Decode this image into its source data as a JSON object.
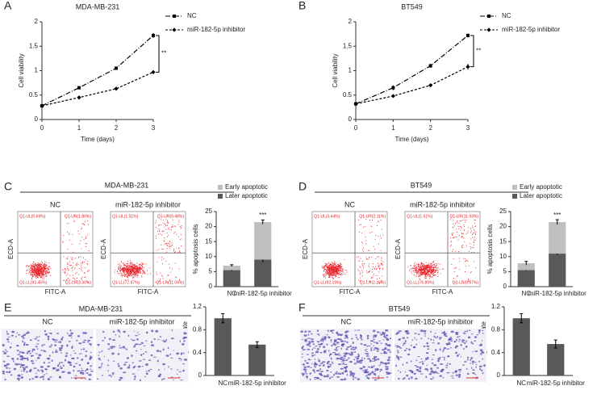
{
  "figure": {
    "panel_labels": [
      "A",
      "B",
      "C",
      "D",
      "E",
      "F"
    ],
    "flow": [
      {
        "title": "MDA-MB-231",
        "groups": [
          "NC",
          "miR-182-5p inhibitor"
        ],
        "x_label": "FITC-A",
        "y_label": "ECD-A",
        "quadrants": [
          [
            "Q1-UL(0.69%)",
            "Q1-UR(1.80%)",
            "Q1-LL(93.45%)",
            "Q1-LR(3.30%)"
          ],
          [
            "Q1-UL(1.51%)",
            "Q1-UR(9.48%)",
            "Q1-LL(77.97%)",
            "Q1-LR(11.04%)"
          ]
        ]
      },
      {
        "title": "BT549",
        "groups": [
          "NC",
          "miR-182-5p inhibitor"
        ],
        "x_label": "FITC-A",
        "y_label": "ECD-A",
        "quadrants": [
          [
            "Q1-UL(3.44%)",
            "Q1-UR(2.11%)",
            "Q1-LL(92.19%)",
            "Q1-LR(2.26%)"
          ],
          [
            "Q1-UL(1.61%)",
            "Q1-UR(11.93%)",
            "Q1-LL(76.89%)",
            "Q1-LR(9.57%)"
          ]
        ]
      }
    ],
    "migration": [
      {
        "title": "MDA-MB-231",
        "groups": [
          "NC",
          "miR-182-5p inhibitor"
        ]
      },
      {
        "title": "BT549",
        "groups": [
          "NC",
          "miR-182-5p inhibitor"
        ]
      }
    ]
  },
  "chart_data": [
    {
      "type": "line",
      "title": "MDA-MB-231",
      "x_label": "Time (days)",
      "y_label": "Cell viability",
      "x": [
        0,
        1,
        2,
        3
      ],
      "xlim": [
        0,
        3
      ],
      "xticks": [
        0,
        1,
        2,
        3
      ],
      "ylim": [
        0,
        2
      ],
      "yticks": [
        0,
        0.5,
        1,
        1.5,
        2
      ],
      "annotation": "**",
      "series": [
        {
          "name": "NC",
          "color": "#000000",
          "dash": "dashdot",
          "marker": "square",
          "values": [
            0.28,
            0.65,
            1.05,
            1.72
          ],
          "errors": [
            0.03,
            0.03,
            0.03,
            0.05
          ]
        },
        {
          "name": "miR-182-5p inhibitor",
          "color": "#000000",
          "dash": "dashed",
          "marker": "diamond",
          "values": [
            0.28,
            0.45,
            0.63,
            0.97
          ],
          "errors": [
            0.03,
            0.02,
            0.03,
            0.04
          ]
        }
      ]
    },
    {
      "type": "line",
      "title": "BT549",
      "x_label": "Time (days)",
      "y_label": "Cell viability",
      "x": [
        0,
        1,
        2,
        3
      ],
      "xlim": [
        0,
        3
      ],
      "xticks": [
        0,
        1,
        2,
        3
      ],
      "ylim": [
        0,
        2
      ],
      "yticks": [
        0,
        0.5,
        1,
        1.5,
        2
      ],
      "annotation": "**",
      "series": [
        {
          "name": "NC",
          "color": "#000000",
          "dash": "dashdot",
          "marker": "square",
          "values": [
            0.32,
            0.65,
            1.1,
            1.72
          ],
          "errors": [
            0.03,
            0.05,
            0.04,
            0.04
          ]
        },
        {
          "name": "miR-182-5p inhibitor",
          "color": "#000000",
          "dash": "dashed",
          "marker": "diamond",
          "values": [
            0.32,
            0.48,
            0.7,
            1.08
          ],
          "errors": [
            0.03,
            0.03,
            0.03,
            0.06
          ]
        }
      ]
    },
    {
      "type": "stacked_bar",
      "y_label": "% apoptosis cells",
      "categories": [
        "NC",
        "miR-182-5p inhibitor"
      ],
      "ylim": [
        0,
        25
      ],
      "yticks": [
        0,
        5,
        10,
        15,
        20,
        25
      ],
      "annotation": "***",
      "series": [
        {
          "name": "Later apoptotic",
          "color": "#595959",
          "values": [
            5.5,
            9
          ],
          "errors": [
            0.3,
            0.9
          ]
        },
        {
          "name": "Early apoptotic",
          "color": "#bfbfbf",
          "values": [
            1.5,
            12.5
          ],
          "errors": [
            0.3,
            0.7
          ]
        }
      ]
    },
    {
      "type": "stacked_bar",
      "y_label": "% apoptosis cells",
      "categories": [
        "NC",
        "miR-182-5p inhibitor"
      ],
      "ylim": [
        0,
        25
      ],
      "yticks": [
        0,
        5,
        10,
        15,
        20,
        25
      ],
      "annotation": "***",
      "series": [
        {
          "name": "Later apoptotic",
          "color": "#595959",
          "values": [
            5.5,
            11
          ],
          "errors": [
            0.3,
            0.4
          ]
        },
        {
          "name": "Early apoptotic",
          "color": "#bfbfbf",
          "values": [
            2.3,
            10.5
          ],
          "errors": [
            0.6,
            0.8
          ]
        }
      ]
    },
    {
      "type": "bar",
      "y_label": "Migration rate",
      "categories": [
        "NC",
        "miR-182-5p inhibitor"
      ],
      "color": "#595959",
      "values": [
        1.0,
        0.54
      ],
      "errors": [
        0.08,
        0.05
      ],
      "ylim": [
        0,
        1.2
      ],
      "yticks": [
        0,
        0.4,
        0.8,
        1.2
      ]
    },
    {
      "type": "bar",
      "y_label": "Migration rate",
      "categories": [
        "NC",
        "miR-182-5p inhibitor"
      ],
      "color": "#595959",
      "values": [
        1.0,
        0.55
      ],
      "errors": [
        0.08,
        0.07
      ],
      "ylim": [
        0,
        1.2
      ],
      "yticks": [
        0,
        0.4,
        0.8,
        1.2
      ]
    }
  ]
}
